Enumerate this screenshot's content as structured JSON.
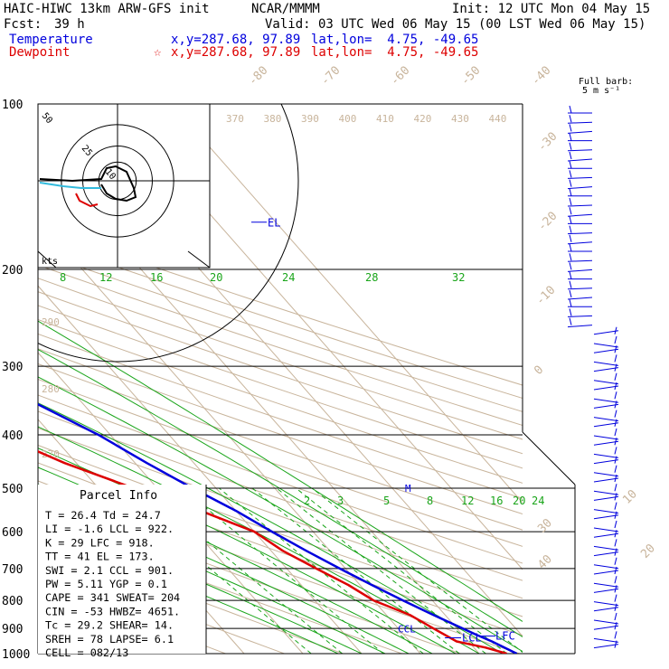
{
  "header": {
    "model": "HAIC-HIWC 13km ARW-GFS init",
    "org": "NCAR/MMMM",
    "init": "Init: 12 UTC Mon 04 May 15",
    "fcst_label": "Fcst:",
    "fcst_value": "39 h",
    "valid": "Valid: 03 UTC Wed 06 May 15 (00 LST Wed 06 May 15)",
    "temp_label": "Temperature",
    "temp_xy": "x,y=287.68, 97.89",
    "temp_latlon": "lat,lon=  4.75, -49.65",
    "dew_label": "Dewpoint",
    "dew_marker": "☆",
    "dew_xy": "x,y=287.68, 97.89",
    "dew_latlon": "lat,lon=  4.75, -49.65"
  },
  "colors": {
    "temperature": "#0000dd",
    "dewpoint": "#dd0000",
    "isotherm": "#c8b49b",
    "dry_adiabat": "#c8b49b",
    "moist_adiabat": "#1aa51a",
    "mixing_ratio": "#1aa51a",
    "isobar": "#000000",
    "theta_e_label": "#c8b49b"
  },
  "barb_legend": {
    "title": "Full barb:",
    "value": "5 m s⁻¹"
  },
  "hodograph": {
    "ring_labels": [
      "50",
      "25",
      "10"
    ],
    "units": "kts"
  },
  "chart_data": {
    "type": "line",
    "title": "",
    "ylabel": "",
    "xlabel": "",
    "y_scale": "log",
    "ylim": [
      1000,
      100
    ],
    "pressure_ticks": [
      100,
      200,
      300,
      400,
      500,
      600,
      700,
      800,
      900,
      1000
    ],
    "isotherm_labels": [
      "-80",
      "-70",
      "-60",
      "-50",
      "-40",
      "-30",
      "-20",
      "-10",
      "0",
      "10",
      "20",
      "30",
      "40"
    ],
    "theta_labels_top": [
      "370",
      "380",
      "390",
      "400",
      "410",
      "420",
      "430",
      "440"
    ],
    "theta_labels_left": [
      "290",
      "280",
      "270"
    ],
    "moist_labels_200": [
      "8",
      "12",
      "16",
      "20",
      "24",
      "28",
      "32"
    ],
    "mixing_ratio_labels": [
      "2",
      "3",
      "5",
      "8",
      "12",
      "16",
      "20",
      "24"
    ],
    "series": [
      {
        "name": "Temperature",
        "points": [
          {
            "p": 1000,
            "t": 26.4
          },
          {
            "p": 950,
            "t": 24.0
          },
          {
            "p": 925,
            "t": 22.4
          },
          {
            "p": 900,
            "t": 21.0
          },
          {
            "p": 850,
            "t": 18.0
          },
          {
            "p": 800,
            "t": 15.0
          },
          {
            "p": 750,
            "t": 12.0
          },
          {
            "p": 700,
            "t": 9.0
          },
          {
            "p": 650,
            "t": 6.0
          },
          {
            "p": 600,
            "t": 3.0
          },
          {
            "p": 550,
            "t": 0.0
          },
          {
            "p": 500,
            "t": -4.0
          },
          {
            "p": 450,
            "t": -8.0
          },
          {
            "p": 400,
            "t": -12.0
          },
          {
            "p": 350,
            "t": -18.0
          },
          {
            "p": 300,
            "t": -26.0
          },
          {
            "p": 250,
            "t": -36.0
          },
          {
            "p": 200,
            "t": -48.0
          },
          {
            "p": 175,
            "t": -54.0
          },
          {
            "p": 150,
            "t": -62.0
          },
          {
            "p": 125,
            "t": -72.0
          },
          {
            "p": 110,
            "t": -78.0
          },
          {
            "p": 100,
            "t": -80.0
          }
        ]
      },
      {
        "name": "Dewpoint",
        "points": [
          {
            "p": 1000,
            "t": 24.7
          },
          {
            "p": 975,
            "t": 22.0
          },
          {
            "p": 950,
            "t": 18.0
          },
          {
            "p": 900,
            "t": 16.0
          },
          {
            "p": 850,
            "t": 14.0
          },
          {
            "p": 800,
            "t": 10.0
          },
          {
            "p": 750,
            "t": 8.0
          },
          {
            "p": 700,
            "t": 5.0
          },
          {
            "p": 650,
            "t": 2.0
          },
          {
            "p": 600,
            "t": 0.0
          },
          {
            "p": 550,
            "t": -6.0
          },
          {
            "p": 500,
            "t": -14.0
          },
          {
            "p": 450,
            "t": -22.0
          },
          {
            "p": 420,
            "t": -26.0
          },
          {
            "p": 380,
            "t": -36.0
          },
          {
            "p": 350,
            "t": -46.0
          },
          {
            "p": 330,
            "t": -52.0
          },
          {
            "p": 300,
            "t": -60.0
          },
          {
            "p": 275,
            "t": -62.0
          },
          {
            "p": 250,
            "t": -70.0
          },
          {
            "p": 200,
            "t": -82.0
          },
          {
            "p": 175,
            "t": -90.0
          },
          {
            "p": 150,
            "t": -100.0
          },
          {
            "p": 125,
            "t": -104.0
          },
          {
            "p": 100,
            "t": -110.0
          }
        ]
      }
    ],
    "levels": [
      {
        "label": "EL",
        "p": 173
      },
      {
        "label": "LCL",
        "p": 922
      },
      {
        "label": "LFC",
        "p": 918
      },
      {
        "label": "CCL",
        "p": 901
      },
      {
        "label": "M",
        "p": 500
      }
    ]
  },
  "parcel_info": {
    "title": "Parcel Info",
    "rows": [
      "T   =    26.4  Td =  24.7",
      "LI  =    -1.6  LCL =  922.",
      "K   =      29  LFC =  918.",
      "TT  =      41  EL  =  173.",
      "SWI =     2.1  CCL =  901.",
      "PW  =    5.11  YGP =   0.1",
      "CAPE =    341  SWEAT=  204",
      "CIN  =    -53  HWBZ= 4651.",
      "Tc  =    29.2  SHEAR=  14.",
      "SREH =     78  LAPSE=  6.1",
      "CELL = 082/13"
    ]
  }
}
